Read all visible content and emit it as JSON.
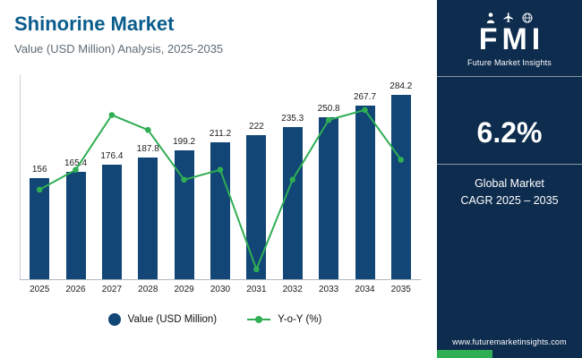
{
  "header": {
    "title": "Shinorine Market",
    "subtitle": "Value (USD Million) Analysis, 2025-2035"
  },
  "chart_data": {
    "type": "combo",
    "categories": [
      "2025",
      "2026",
      "2027",
      "2028",
      "2029",
      "2030",
      "2031",
      "2032",
      "2033",
      "2034",
      "2035"
    ],
    "series": [
      {
        "name": "Value (USD Million)",
        "type": "bar",
        "color": "#114677",
        "values": [
          156,
          165.4,
          176.4,
          187.8,
          199.2,
          211.2,
          222,
          235.3,
          250.8,
          267.7,
          284.2
        ],
        "labels": [
          "156",
          "165.4",
          "176.4",
          "187.8",
          "199.2",
          "211.2",
          "222",
          "235.3",
          "250.8",
          "267.7",
          "284.2"
        ]
      },
      {
        "name": "Y-o-Y (%)",
        "type": "line",
        "color": "#2fae54",
        "values": [
          5.9,
          6.1,
          6.65,
          6.5,
          6.0,
          6.1,
          5.1,
          6.0,
          6.6,
          6.7,
          6.2
        ]
      }
    ],
    "bar_axis_max": 315,
    "line_axis_range": [
      5.0,
      7.05
    ],
    "grid": false,
    "legend_position": "bottom"
  },
  "side_panel": {
    "logo": {
      "text": "FMI",
      "tagline": "Future Market Insights",
      "icons": [
        "people-icon",
        "plane-icon",
        "globe-icon"
      ]
    },
    "cagr_value": "6.2%",
    "cagr_label_line1": "Global Market",
    "cagr_label_line2": "CAGR 2025 – 2035",
    "website": "www.futuremarketinsights.com"
  },
  "colors": {
    "bar": "#114677",
    "line": "#2fae54",
    "panel_bg": "#0e2c4e",
    "title": "#0a5c8c",
    "accent_green": "#2fae54"
  }
}
